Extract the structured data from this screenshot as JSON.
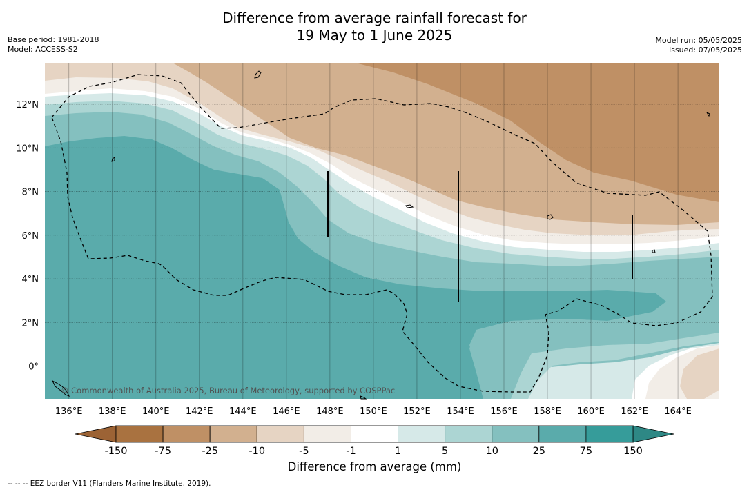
{
  "title_line1": "Difference from average rainfall forecast for",
  "title_line2": "19 May to 1 June 2025",
  "base_period": "Base period: 1981-2018",
  "model": "Model: ACCESS-S2",
  "model_run": "Model run: 05/05/2025",
  "issued": "Issued: 07/05/2025",
  "copyright": "© Commonwealth of Australia 2025, Bureau of Meteorology, supported by COSPPac",
  "footnote": "-- -- -- EEZ border V11 (Flanders Marine Institute, 2019).",
  "colorbar": {
    "title": "Difference from average (mm)",
    "ticks": [
      "-150",
      "-75",
      "-25",
      "-10",
      "-5",
      "-1",
      "1",
      "5",
      "10",
      "25",
      "75",
      "150"
    ],
    "colors": [
      "#a97240",
      "#bf9065",
      "#d2b08f",
      "#e6d4c3",
      "#f2ede7",
      "#ffffff",
      "#d6e9e8",
      "#acd5d3",
      "#84c0bf",
      "#5aabab",
      "#369c9a"
    ],
    "under_color": "#9c6335",
    "over_color": "#2e8885"
  },
  "map": {
    "lon_labels": [
      "136°E",
      "138°E",
      "140°E",
      "142°E",
      "144°E",
      "146°E",
      "148°E",
      "150°E",
      "152°E",
      "154°E",
      "156°E",
      "158°E",
      "160°E",
      "162°E",
      "164°E"
    ],
    "lat_labels": [
      "12°N",
      "10°N",
      "8°N",
      "6°N",
      "4°N",
      "2°N",
      "0°"
    ],
    "lon_values": [
      136,
      138,
      140,
      142,
      144,
      146,
      148,
      150,
      152,
      154,
      156,
      158,
      160,
      162,
      164
    ],
    "lat_values": [
      12,
      10,
      8,
      6,
      4,
      2,
      0
    ],
    "lon_range": [
      134.9,
      165.9
    ],
    "lat_range": [
      -1.5,
      13.9
    ]
  }
}
